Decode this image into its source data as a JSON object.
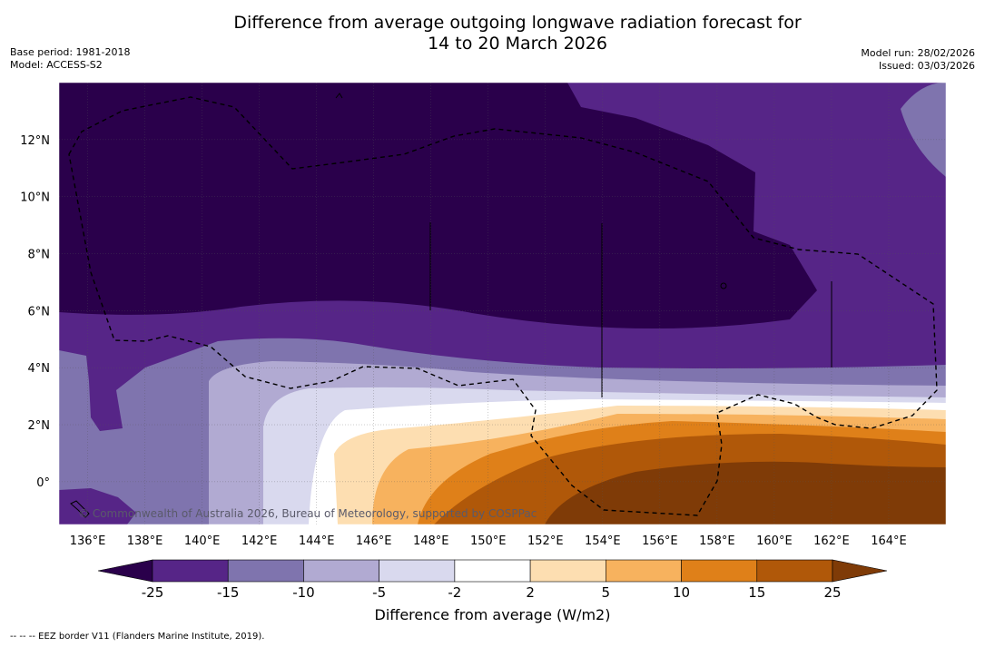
{
  "title_line1": "Difference from average outgoing longwave radiation forecast for",
  "title_line2": "14 to 20 March 2026",
  "base_period": "Base period: 1981-2018",
  "model": "Model: ACCESS-S2",
  "model_run": "Model run: 28/02/2026",
  "issued": "Issued: 03/03/2026",
  "copyright": "© Commonwealth of Australia 2026, Bureau of Meteorology, supported by COSPPac",
  "colorbar": {
    "title": "Difference from average (W/m2)",
    "ticks": [
      "-25",
      "-15",
      "-10",
      "-5",
      "-2",
      "2",
      "5",
      "10",
      "15",
      "25"
    ],
    "colors": [
      "#2a004b",
      "#562587",
      "#7f74ae",
      "#b1aad2",
      "#d9d9ee",
      "#ffffff",
      "#fddeb1",
      "#f7b25e",
      "#df8019",
      "#b05809",
      "#7f3b07"
    ]
  },
  "axes": {
    "lon_labels": [
      "136°E",
      "138°E",
      "140°E",
      "142°E",
      "144°E",
      "146°E",
      "148°E",
      "150°E",
      "152°E",
      "154°E",
      "156°E",
      "158°E",
      "160°E",
      "162°E",
      "164°E"
    ],
    "lat_labels": [
      "12°N",
      "10°N",
      "8°N",
      "6°N",
      "4°N",
      "2°N",
      "0°"
    ],
    "lon_range": [
      135,
      166
    ],
    "lat_range": [
      -1.5,
      14
    ]
  },
  "legend_note": "--  --  -- EEZ border V11 (Flanders Marine Institute, 2019)."
}
